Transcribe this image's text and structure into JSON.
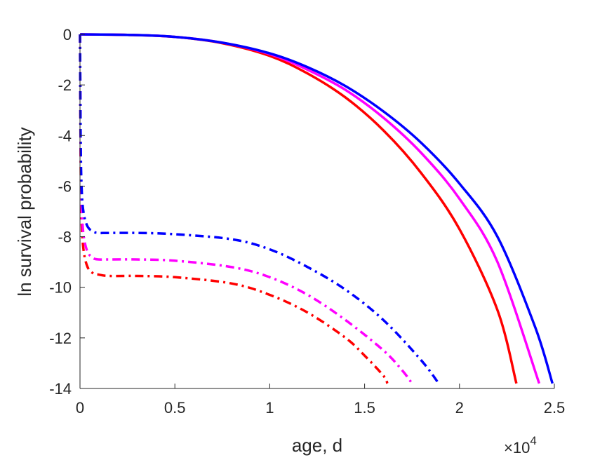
{
  "chart_data": {
    "type": "line",
    "title": "",
    "xlabel": "age, d",
    "ylabel": "ln survival probability",
    "x_exponent_label": "×10",
    "x_exponent_power": "4",
    "xlim": [
      0,
      2.5
    ],
    "ylim": [
      -14,
      0
    ],
    "x_ticks": [
      0,
      0.5,
      1,
      1.5,
      2,
      2.5
    ],
    "x_tick_labels": [
      "0",
      "0.5",
      "1",
      "1.5",
      "2",
      "2.5"
    ],
    "y_ticks": [
      0,
      -2,
      -4,
      -6,
      -8,
      -10,
      -12,
      -14
    ],
    "y_tick_labels": [
      "0",
      "-2",
      "-4",
      "-6",
      "-8",
      "-10",
      "-12",
      "-14"
    ],
    "grid": false,
    "legend": "none",
    "series": [
      {
        "color": "#ff0000",
        "style": "solid",
        "x": [
          0.001,
          0.25,
          0.5,
          0.75,
          1.0,
          1.2,
          1.4,
          1.6,
          1.8,
          2.0,
          2.2,
          2.3
        ],
        "y": [
          0,
          -0.02,
          -0.1,
          -0.35,
          -0.85,
          -1.55,
          -2.5,
          -3.8,
          -5.5,
          -7.7,
          -10.9,
          -13.8
        ]
      },
      {
        "color": "#ff00ff",
        "style": "solid",
        "x": [
          0.001,
          0.25,
          0.5,
          0.75,
          1.0,
          1.2,
          1.4,
          1.6,
          1.8,
          2.0,
          2.2,
          2.42
        ],
        "y": [
          0,
          -0.02,
          -0.1,
          -0.33,
          -0.78,
          -1.4,
          -2.2,
          -3.3,
          -4.7,
          -6.5,
          -9.0,
          -13.8
        ]
      },
      {
        "color": "#0000ff",
        "style": "solid",
        "x": [
          0.001,
          0.25,
          0.5,
          0.75,
          1.0,
          1.2,
          1.4,
          1.6,
          1.8,
          2.0,
          2.2,
          2.4,
          2.49
        ],
        "y": [
          0,
          -0.02,
          -0.1,
          -0.33,
          -0.75,
          -1.3,
          -2.05,
          -3.05,
          -4.3,
          -5.9,
          -8.0,
          -11.6,
          -13.8
        ]
      },
      {
        "color": "#ff0000",
        "style": "dashdot",
        "x": [
          0.0,
          0.004,
          0.01,
          0.02,
          0.04,
          0.07,
          0.1,
          0.15,
          0.3,
          0.5,
          0.8,
          1.0,
          1.2,
          1.4,
          1.5,
          1.6,
          1.62
        ],
        "y": [
          0,
          -5.5,
          -7.6,
          -8.6,
          -9.2,
          -9.45,
          -9.5,
          -9.55,
          -9.55,
          -9.6,
          -9.85,
          -10.3,
          -11.0,
          -12.0,
          -12.7,
          -13.5,
          -13.8
        ]
      },
      {
        "color": "#ff00ff",
        "style": "dashdot",
        "x": [
          0.0,
          0.004,
          0.01,
          0.02,
          0.04,
          0.07,
          0.1,
          0.15,
          0.3,
          0.5,
          0.8,
          1.0,
          1.2,
          1.4,
          1.6,
          1.7,
          1.75
        ],
        "y": [
          0,
          -5.0,
          -7.0,
          -8.0,
          -8.6,
          -8.85,
          -8.9,
          -8.9,
          -8.9,
          -8.95,
          -9.2,
          -9.6,
          -10.3,
          -11.3,
          -12.5,
          -13.3,
          -13.8
        ]
      },
      {
        "color": "#0000ff",
        "style": "dashdot",
        "x": [
          0.0,
          0.004,
          0.01,
          0.02,
          0.04,
          0.07,
          0.1,
          0.15,
          0.3,
          0.5,
          0.8,
          1.0,
          1.2,
          1.4,
          1.6,
          1.8,
          1.89
        ],
        "y": [
          0,
          -4.5,
          -6.3,
          -7.1,
          -7.6,
          -7.8,
          -7.85,
          -7.85,
          -7.85,
          -7.9,
          -8.1,
          -8.5,
          -9.2,
          -10.1,
          -11.3,
          -12.9,
          -13.8
        ]
      }
    ]
  }
}
